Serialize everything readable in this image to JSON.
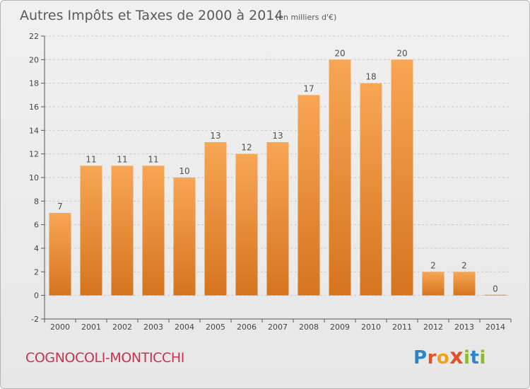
{
  "colors": {
    "bar_light": "#f7a654",
    "bar_dark": "#d6741f",
    "grid": "#c8c8c8",
    "axis": "#555555",
    "place_name": "#c8334f"
  },
  "chart_data": {
    "type": "bar",
    "title": "Autres Impôts et Taxes de 2000 à 2014",
    "subtitle": "(en milliers d'€)",
    "categories": [
      "2000",
      "2001",
      "2002",
      "2003",
      "2004",
      "2005",
      "2006",
      "2007",
      "2008",
      "2009",
      "2010",
      "2011",
      "2012",
      "2013",
      "2014"
    ],
    "values": [
      7,
      11,
      11,
      11,
      10,
      13,
      12,
      13,
      17,
      20,
      18,
      20,
      2,
      2,
      0
    ],
    "ylim": [
      -2,
      22
    ],
    "yticks": [
      -2,
      0,
      2,
      4,
      6,
      8,
      10,
      12,
      14,
      16,
      18,
      20,
      22
    ],
    "grid": true
  },
  "footer": {
    "place_name": "COGNOCOLI-MONTICCHI",
    "logo_text": "Proxiti",
    "logo_letters": [
      {
        "ch": "P",
        "color": "#2e86c8"
      },
      {
        "ch": "r",
        "color": "#e0532a"
      },
      {
        "ch": "o",
        "color": "#f0a21c"
      },
      {
        "ch": "x",
        "color": "#e0532a"
      },
      {
        "ch": "i",
        "color": "#8bbd2b"
      },
      {
        "ch": "t",
        "color": "#2e86c8"
      },
      {
        "ch": "i",
        "color": "#8bbd2b"
      }
    ]
  }
}
